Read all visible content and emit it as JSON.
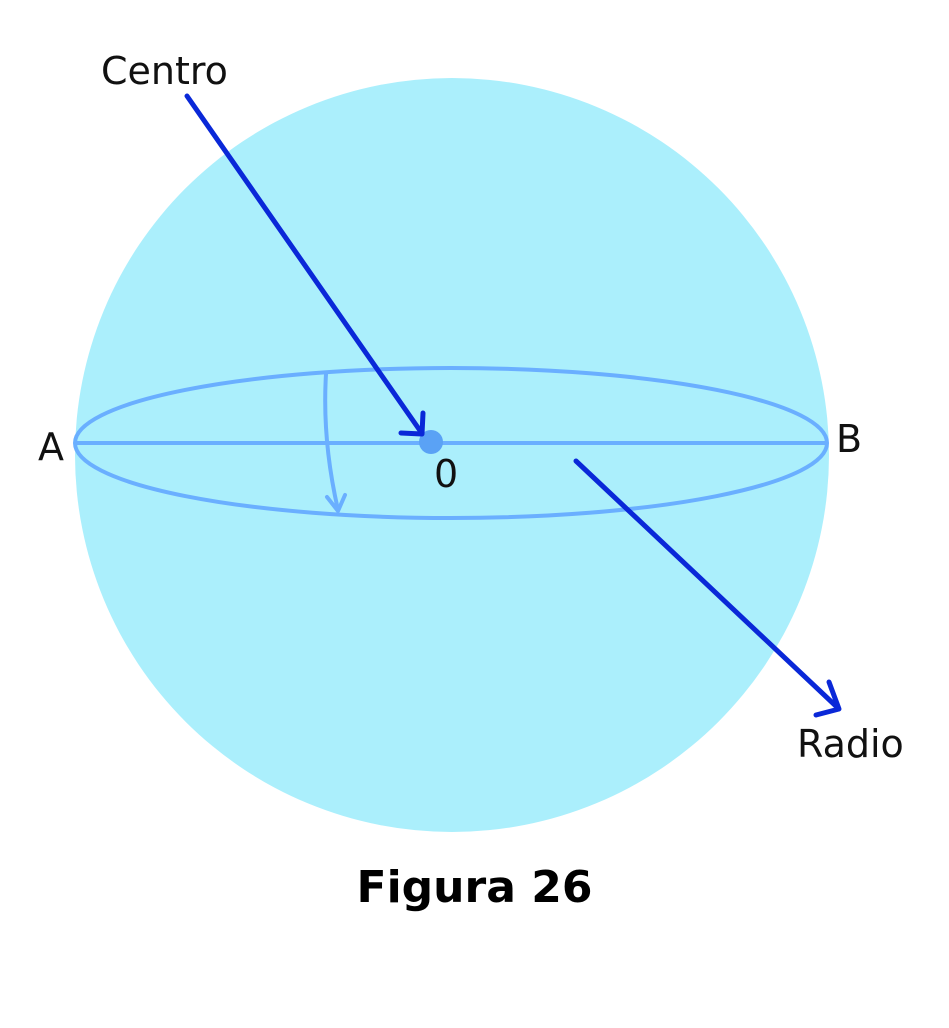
{
  "labels": {
    "centro": "Centro",
    "point_a": "A",
    "point_b": "B",
    "point_o": "0",
    "radio": "Radio"
  },
  "caption": "Figura 26",
  "colors": {
    "sphere_fill": "#abeffc",
    "equator_line": "#6aafff",
    "center_dot": "#5aa2f5",
    "pointer_arrow": "#0a28d8",
    "text": "#111111"
  }
}
